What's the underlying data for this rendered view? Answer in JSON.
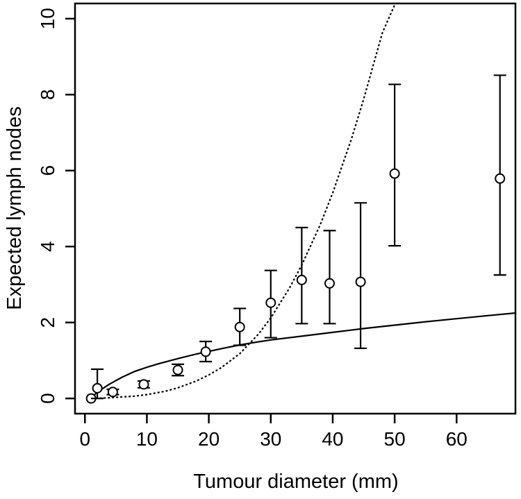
{
  "chart_data": {
    "type": "scatter",
    "title": "",
    "xlabel": "Tumour diameter (mm)",
    "ylabel": "Expected lymph nodes",
    "xlim": [
      -1.6,
      69.5
    ],
    "ylim": [
      -0.4,
      10.4
    ],
    "xticks": [
      0,
      10,
      20,
      30,
      40,
      50,
      60
    ],
    "yticks": [
      0,
      2,
      4,
      6,
      8,
      10
    ],
    "xtick_labels": [
      "0",
      "10",
      "20",
      "30",
      "40",
      "50",
      "60"
    ],
    "ytick_labels": [
      "0",
      "2",
      "4",
      "6",
      "8",
      "10"
    ],
    "grid": false,
    "legend": "none",
    "series": [
      {
        "kind": "points-with-errorbars",
        "marker": "open-circle",
        "x": [
          1,
          2,
          4.5,
          9.5,
          15,
          19.5,
          25,
          30,
          35,
          39.5,
          44.5,
          50,
          67
        ],
        "y": [
          0,
          0.27,
          0.17,
          0.37,
          0.75,
          1.23,
          1.88,
          2.52,
          3.12,
          3.03,
          3.07,
          5.92,
          5.79
        ],
        "lower": [
          0,
          0,
          0.1,
          0.28,
          0.6,
          0.97,
          1.4,
          1.6,
          1.97,
          1.97,
          1.32,
          4.02,
          3.25
        ],
        "upper": [
          0,
          0.77,
          0.24,
          0.46,
          0.9,
          1.5,
          2.37,
          3.37,
          4.5,
          4.42,
          5.15,
          8.27,
          8.51
        ]
      },
      {
        "kind": "line",
        "style": "solid",
        "x": [
          1,
          2,
          4,
          6,
          8,
          10,
          12,
          15,
          18,
          20,
          22,
          25,
          28,
          30,
          35,
          40,
          45,
          50,
          55,
          60,
          65,
          69.5
        ],
        "y": [
          0,
          0.17,
          0.38,
          0.56,
          0.71,
          0.82,
          0.92,
          1.05,
          1.17,
          1.24,
          1.31,
          1.41,
          1.49,
          1.54,
          1.64,
          1.74,
          1.84,
          1.93,
          2.02,
          2.1,
          2.18,
          2.25
        ]
      },
      {
        "kind": "line",
        "style": "dotted",
        "x": [
          1,
          3,
          5,
          8,
          10,
          13,
          15,
          18,
          20,
          22,
          25,
          28,
          30,
          33,
          35,
          38,
          40,
          43,
          45,
          48,
          50.1
        ],
        "y": [
          0,
          0.01,
          0.03,
          0.06,
          0.1,
          0.19,
          0.28,
          0.46,
          0.62,
          0.81,
          1.18,
          1.69,
          2.12,
          2.9,
          3.51,
          4.58,
          5.41,
          6.82,
          7.88,
          9.62,
          10.4
        ]
      }
    ]
  }
}
